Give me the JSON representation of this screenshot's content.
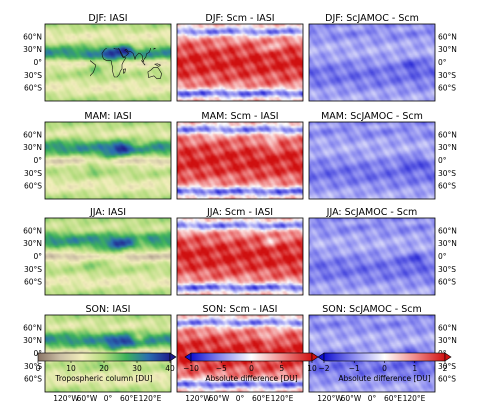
{
  "chart_data": {
    "type": "heatmap",
    "rows": [
      {
        "season": "DJF",
        "panels": [
          "DJF: IASI",
          "DJF: Scm - IASI",
          "DJF: ScJAMOC - Scm"
        ]
      },
      {
        "season": "MAM",
        "panels": [
          "MAM: IASI",
          "MAM: Scm - IASI",
          "MAM: ScJAMOC - Scm"
        ]
      },
      {
        "season": "JJA",
        "panels": [
          "JJA: IASI",
          "JJA: Scm - IASI",
          "JJA: ScJAMOC - Scm"
        ]
      },
      {
        "season": "SON",
        "panels": [
          "SON: IASI",
          "SON: Scm - IASI",
          "SON: ScJAMOC - Scm"
        ]
      }
    ],
    "lat_ticks": [
      "60°N",
      "30°N",
      "0°",
      "30°S",
      "60°S"
    ],
    "lat_tick_values": [
      60,
      30,
      0,
      -30,
      -60
    ],
    "lon_ticks": [
      "120°W",
      "60°W",
      "0°",
      "60°E",
      "120°E"
    ],
    "lon_tick_values": [
      -120,
      -60,
      0,
      60,
      120
    ],
    "colorbars": [
      {
        "label": "Tropospheric column [DU]",
        "ticks": [
          "0",
          "10",
          "20",
          "30",
          "40"
        ],
        "tick_values": [
          0,
          10,
          20,
          30,
          40
        ],
        "range": [
          0,
          40
        ],
        "extend": "max",
        "colors": [
          "#8a7466",
          "#cbbfa5",
          "#f2eebb",
          "#b3dc7d",
          "#3db25a",
          "#2a6fb0",
          "#201c8c"
        ]
      },
      {
        "label": "Absolute difference [DU]",
        "ticks": [
          "−10",
          "−5",
          "0",
          "5",
          "10"
        ],
        "tick_values": [
          -10,
          -5,
          0,
          5,
          10
        ],
        "range": [
          -10,
          10
        ],
        "extend": "both",
        "colors": [
          "#1010d0",
          "#8c8cf0",
          "#ffffff",
          "#f08c8c",
          "#d01010"
        ]
      },
      {
        "label": "Absolute difference [DU]",
        "ticks": [
          "−2",
          "−1",
          "0",
          "1",
          "2"
        ],
        "tick_values": [
          -2,
          -1,
          0,
          1,
          2
        ],
        "range": [
          -2,
          2
        ],
        "extend": "both",
        "colors": [
          "#1010d0",
          "#8c8cf0",
          "#ffffff",
          "#f08c8c",
          "#d01010"
        ]
      }
    ]
  }
}
